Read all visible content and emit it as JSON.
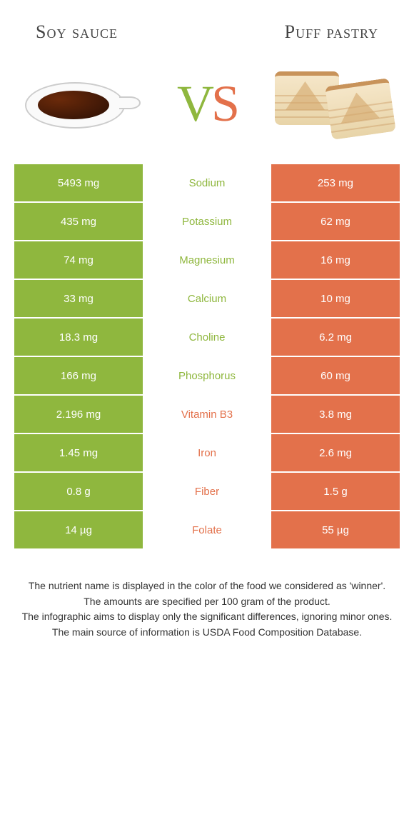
{
  "leftFood": "Soy sauce",
  "rightFood": "Puff pastry",
  "vs": {
    "v": "V",
    "s": "S"
  },
  "colors": {
    "left": "#8fb73e",
    "right": "#e3714b",
    "background": "#ffffff",
    "text": "#333333"
  },
  "fonts": {
    "headerFamily": "Georgia, serif",
    "headerSize": 26,
    "vsSize": 72,
    "cellFamily": "Arial, sans-serif",
    "cellSize": 15,
    "footerSize": 14
  },
  "rows": [
    {
      "left": "5493 mg",
      "label": "Sodium",
      "right": "253 mg",
      "winner": "left"
    },
    {
      "left": "435 mg",
      "label": "Potassium",
      "right": "62 mg",
      "winner": "left"
    },
    {
      "left": "74 mg",
      "label": "Magnesium",
      "right": "16 mg",
      "winner": "left"
    },
    {
      "left": "33 mg",
      "label": "Calcium",
      "right": "10 mg",
      "winner": "left"
    },
    {
      "left": "18.3 mg",
      "label": "Choline",
      "right": "6.2 mg",
      "winner": "left"
    },
    {
      "left": "166 mg",
      "label": "Phosphorus",
      "right": "60 mg",
      "winner": "left"
    },
    {
      "left": "2.196 mg",
      "label": "Vitamin B3",
      "right": "3.8 mg",
      "winner": "right"
    },
    {
      "left": "1.45 mg",
      "label": "Iron",
      "right": "2.6 mg",
      "winner": "right"
    },
    {
      "left": "0.8 g",
      "label": "Fiber",
      "right": "1.5 g",
      "winner": "right"
    },
    {
      "left": "14 µg",
      "label": "Folate",
      "right": "55 µg",
      "winner": "right"
    }
  ],
  "footer": {
    "line1": "The nutrient name is displayed in the color of the food we considered as 'winner'.",
    "line2": "The amounts are specified per 100 gram of the product.",
    "line3": "The infographic aims to display only the significant differences, ignoring minor ones.",
    "line4": "The main source of information is USDA Food Composition Database."
  }
}
